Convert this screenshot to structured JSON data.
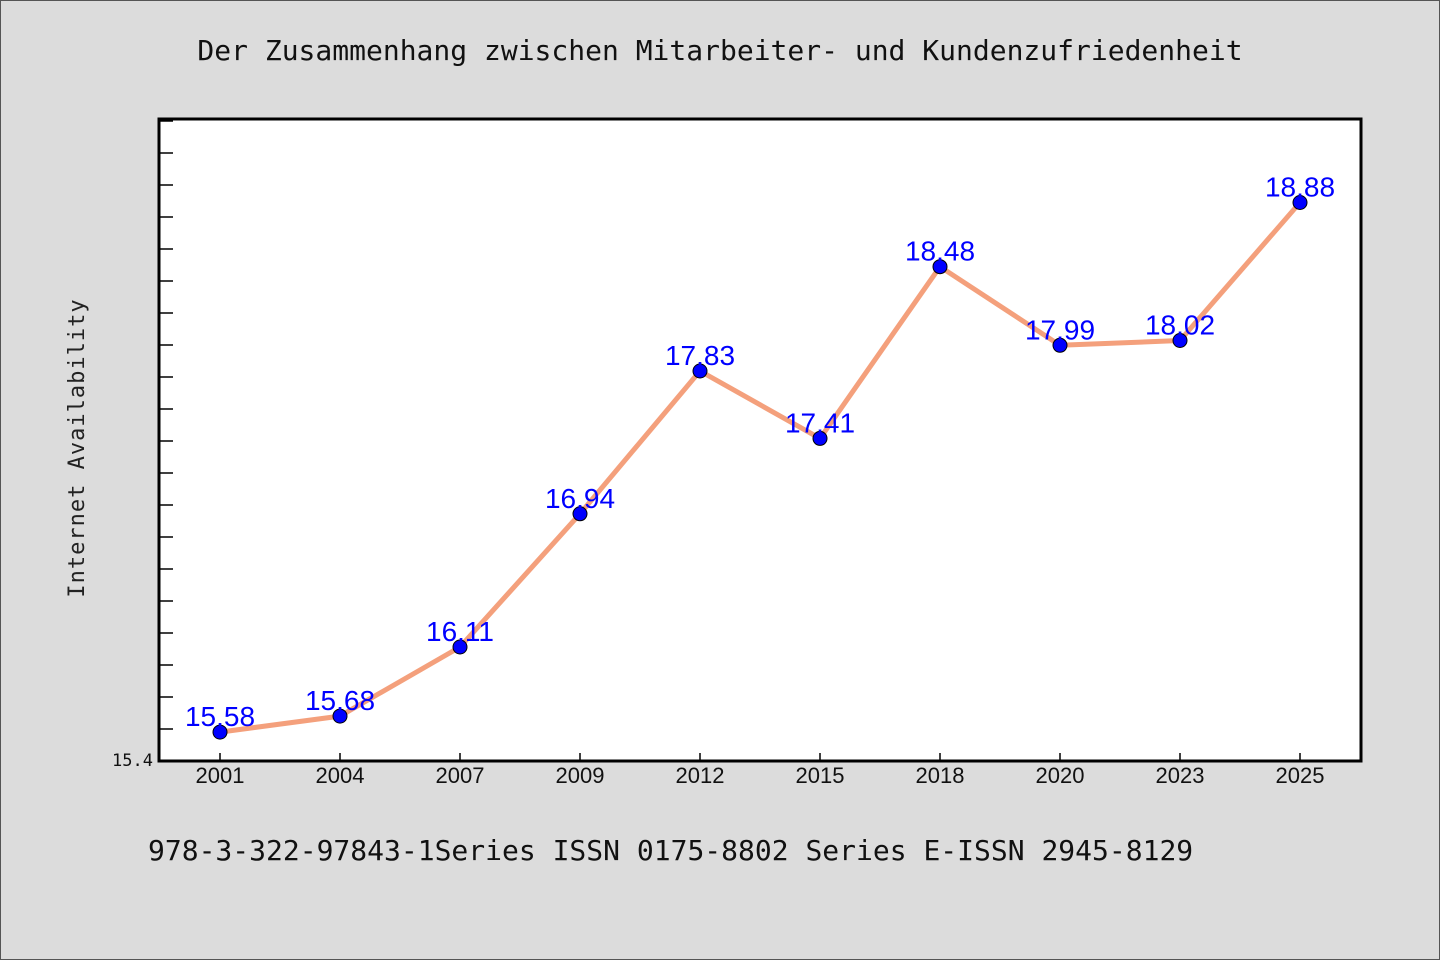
{
  "chart_data": {
    "type": "line",
    "title": "Der Zusammenhang zwischen Mitarbeiter- und Kundenzufriedenheit",
    "xlabel": "",
    "ylabel": "Internet Availability",
    "categories": [
      "2001",
      "2004",
      "2007",
      "2009",
      "2012",
      "2015",
      "2018",
      "2020",
      "2023",
      "2025"
    ],
    "series": [
      {
        "values": [
          15.58,
          15.68,
          16.11,
          16.94,
          17.83,
          17.41,
          18.48,
          17.99,
          18.02,
          18.88
        ]
      }
    ],
    "data_labels": [
      "15.58",
      "15.68",
      "16.11",
      "16.94",
      "17.83",
      "17.41",
      "18.48",
      "17.99",
      "18.02",
      "18.88"
    ],
    "ylim": [
      15.4,
      19.4
    ],
    "y_tick_labels": [
      "15.4"
    ],
    "grid": false,
    "colors": {
      "line": "#f4a07c",
      "marker": "#0000ff",
      "label": "#0000ff",
      "background": "#dcdcdc",
      "plot_background": "#ffffff"
    }
  },
  "footer": {
    "text": "978-3-322-97843-1Series ISSN 0175-8802 Series E-ISSN 2945-8129"
  }
}
